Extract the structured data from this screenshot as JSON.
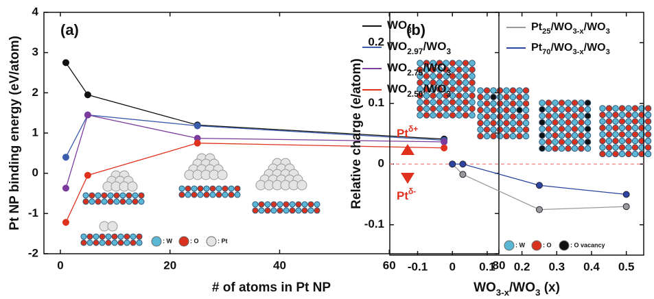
{
  "chart_data": [
    {
      "type": "line",
      "panel_label": "(a)",
      "x_label": "# of atoms in Pt NP",
      "y_label": "Pt NP binding energy (eV/atom)",
      "x": [
        1,
        5,
        25,
        70
      ],
      "series": [
        {
          "name": "WO3",
          "color": "#111111",
          "values": [
            2.75,
            1.95,
            1.2,
            0.85
          ]
        },
        {
          "name": "WO2.97/WO3",
          "color": "#3b5bab",
          "values": [
            0.4,
            1.45,
            1.18,
            0.82
          ]
        },
        {
          "name": "WO2.75/WO3",
          "color": "#7a3b9c",
          "values": [
            -0.37,
            1.45,
            0.87,
            0.78
          ]
        },
        {
          "name": "WO2.50/WO3",
          "color": "#e0301e",
          "values": [
            -1.22,
            -0.05,
            0.75,
            0.63
          ]
        }
      ],
      "xlim": [
        -3,
        80
      ],
      "xticks": [
        0,
        20,
        40,
        60,
        80
      ],
      "ylim": [
        -2,
        4
      ],
      "yticks": [
        -2,
        -1,
        0,
        1,
        2,
        3,
        4
      ],
      "atom_legend": [
        ": W",
        ": O",
        ": Pt"
      ]
    },
    {
      "type": "line",
      "panel_label": "(b)",
      "x_label": "WO3-x/WO3 (x)",
      "y_label": "Relative charge (e/atom)",
      "x": [
        0,
        0.03,
        0.25,
        0.5
      ],
      "series": [
        {
          "name": "Pt25/WO3-x/WO3",
          "color": "#9a9a9a",
          "values": [
            0,
            -0.017,
            -0.075,
            -0.07
          ]
        },
        {
          "name": "Pt70/WO3-x/WO3",
          "color": "#2b45a0",
          "values": [
            0,
            0,
            -0.035,
            -0.05
          ]
        }
      ],
      "xlim": [
        -0.18,
        0.55
      ],
      "xticks": [
        -0.1,
        0,
        0.1,
        0.2,
        0.3,
        0.4,
        0.5
      ],
      "ylim": [
        -0.15,
        0.25
      ],
      "yticks": [
        -0.1,
        0,
        0.1,
        0.2
      ],
      "reference_line": 0,
      "annotations": [
        "Ptδ+",
        "Ptδ-"
      ],
      "atom_legend": [
        ": W",
        ": O",
        ": O vacancy"
      ]
    }
  ]
}
